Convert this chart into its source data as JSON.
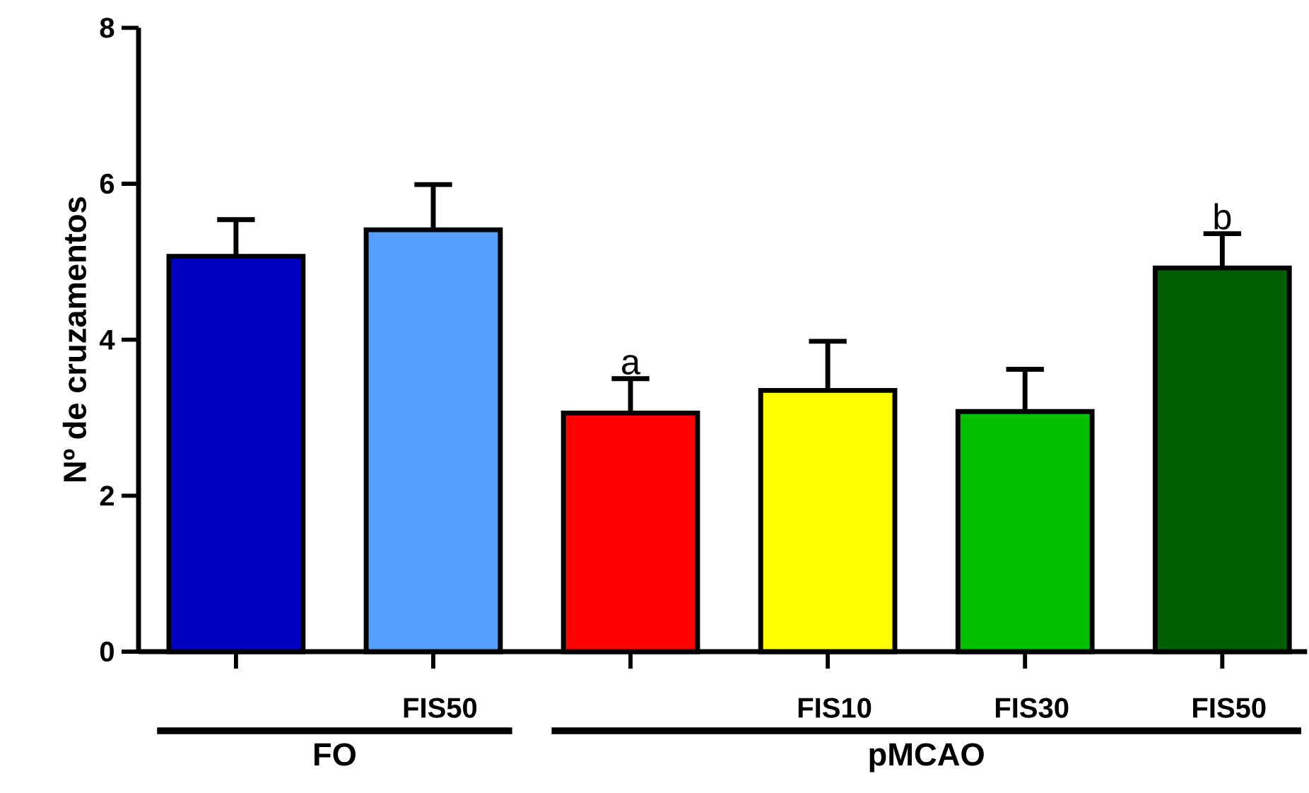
{
  "chart_data": {
    "type": "bar",
    "ylabel": "Nº de cruzamentos",
    "categories": [
      null,
      "FIS50",
      null,
      "FIS10",
      "FIS30",
      "FIS50"
    ],
    "values": [
      5.07,
      5.41,
      3.06,
      3.35,
      3.08,
      4.92
    ],
    "colors": [
      "#0000c0",
      "#55a0ff",
      "#ff0000",
      "#ffff00",
      "#00c000",
      "#006000"
    ],
    "errors": [
      [
        5.07,
        5.54
      ],
      [
        5.41,
        5.99
      ],
      [
        3.06,
        3.5
      ],
      [
        3.35,
        3.98
      ],
      [
        3.08,
        3.62
      ],
      [
        4.92,
        5.36
      ]
    ],
    "value_labels": [
      null,
      null,
      "a",
      null,
      null,
      "b"
    ],
    "annotations": [
      "FO",
      "pMCAO"
    ],
    "ylim": [
      0,
      8
    ],
    "yticks": [
      0,
      2,
      4,
      6,
      8
    ],
    "grid": false
  }
}
